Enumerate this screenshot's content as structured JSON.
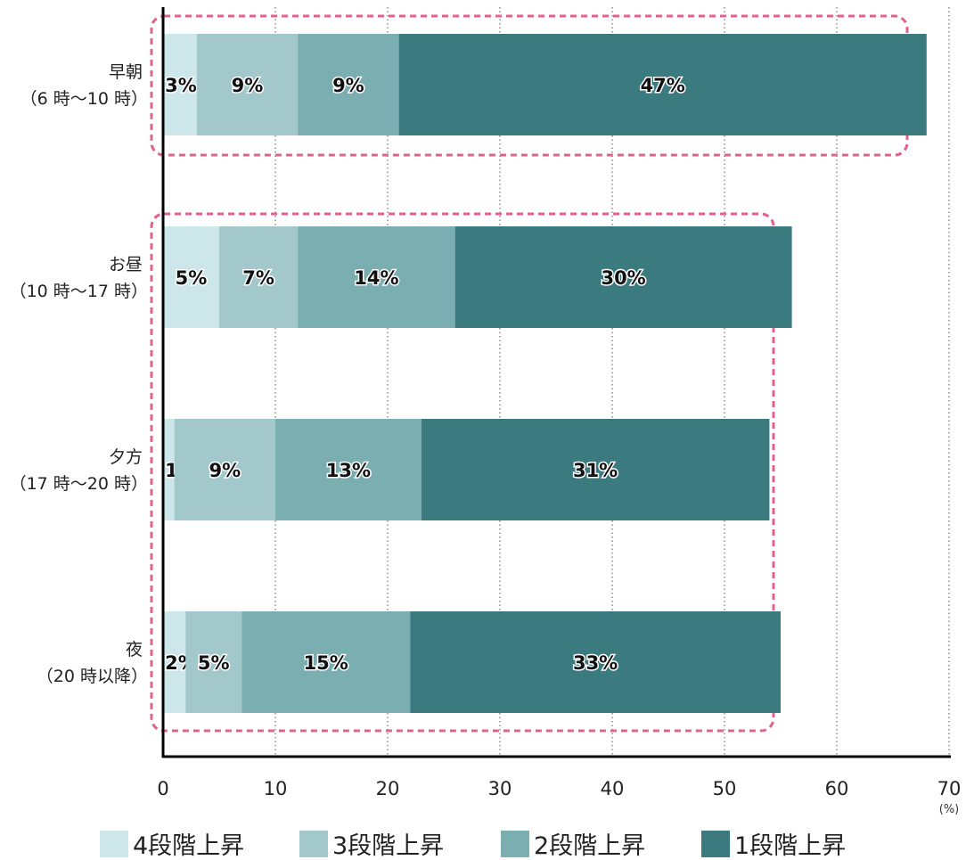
{
  "chart_data": {
    "type": "bar",
    "orientation": "horizontal",
    "stacked": true,
    "categories": [
      [
        "早朝",
        "（6 時〜10 時）"
      ],
      [
        "お昼",
        "（10 時〜17 時）"
      ],
      [
        "夕方",
        "（17 時〜20 時）"
      ],
      [
        "夜",
        "（20 時以降）"
      ]
    ],
    "series": [
      {
        "name": "4段階上昇",
        "color": "#cde6ea",
        "values": [
          3,
          5,
          1,
          2
        ],
        "labels": [
          "3%",
          "5%",
          "1%",
          "2%"
        ]
      },
      {
        "name": "3段階上昇",
        "color": "#a3c8cb",
        "values": [
          9,
          7,
          9,
          5
        ],
        "labels": [
          "9%",
          "7%",
          "9%",
          "5%"
        ]
      },
      {
        "name": "2段階上昇",
        "color": "#7aaeb1",
        "values": [
          9,
          14,
          13,
          15
        ],
        "labels": [
          "9%",
          "14%",
          "13%",
          "15%"
        ]
      },
      {
        "name": "1段階上昇",
        "color": "#3b7b80",
        "values": [
          47,
          30,
          31,
          33
        ],
        "labels": [
          "47%",
          "30%",
          "31%",
          "33%"
        ]
      }
    ],
    "xlim": [
      0,
      70
    ],
    "xticks": [
      0,
      10,
      20,
      30,
      40,
      50,
      60,
      70
    ],
    "xlabel": "",
    "unit_label": "(%)",
    "grid": "vertical dotted",
    "legend_position": "bottom",
    "highlight_groups": [
      [
        0
      ],
      [
        1,
        2,
        3
      ]
    ],
    "highlight_color": "#e0628f"
  }
}
